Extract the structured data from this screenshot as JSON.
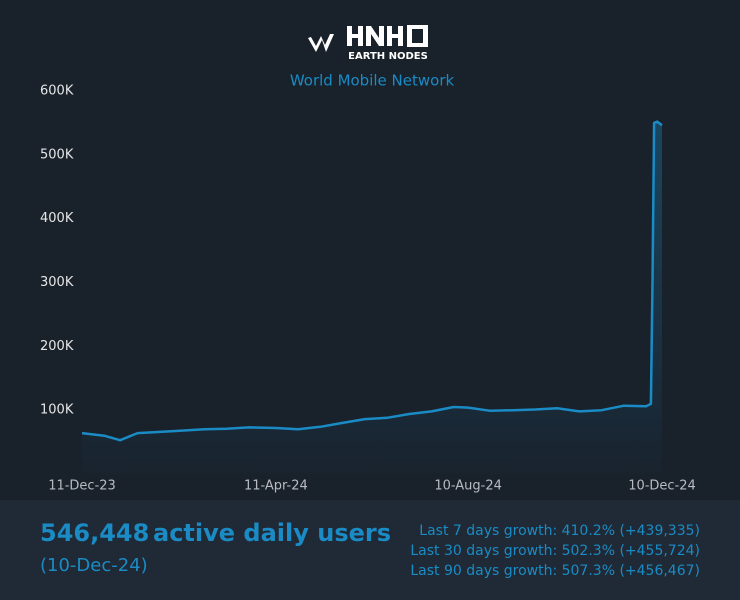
{
  "chart_data": {
    "type": "area",
    "brand": "EARTH NODES",
    "subtitle": "World Mobile Network",
    "x": [
      "11-Dec-23",
      "25-Dec-23",
      "04-Jan-24",
      "15-Jan-24",
      "29-Jan-24",
      "12-Feb-24",
      "26-Feb-24",
      "11-Mar-24",
      "25-Mar-24",
      "11-Apr-24",
      "25-Apr-24",
      "09-May-24",
      "23-May-24",
      "06-Jun-24",
      "20-Jun-24",
      "04-Jul-24",
      "18-Jul-24",
      "01-Aug-24",
      "10-Aug-24",
      "24-Aug-24",
      "07-Sep-24",
      "21-Sep-24",
      "05-Oct-24",
      "19-Oct-24",
      "02-Nov-24",
      "16-Nov-24",
      "30-Nov-24",
      "03-Dec-24",
      "04-Dec-24",
      "05-Dec-24",
      "07-Dec-24",
      "10-Dec-24"
    ],
    "values": [
      64000,
      60000,
      53000,
      64000,
      66000,
      68000,
      70000,
      71000,
      73000,
      72000,
      70000,
      74000,
      80000,
      86000,
      88000,
      94000,
      98000,
      105000,
      104000,
      99000,
      100000,
      101000,
      103000,
      98000,
      100000,
      107000,
      106000,
      110000,
      300000,
      550000,
      552000,
      546448
    ],
    "color": "#1a8bc4",
    "xlim": [
      "11-Dec-23",
      "10-Dec-24"
    ],
    "xticks": [
      "11-Dec-23",
      "11-Apr-24",
      "10-Aug-24",
      "10-Dec-24"
    ],
    "ylim": [
      0,
      600000
    ],
    "yticks": [
      {
        "value": 100000,
        "label": "100K"
      },
      {
        "value": 200000,
        "label": "200K"
      },
      {
        "value": 300000,
        "label": "300K"
      },
      {
        "value": 400000,
        "label": "400K"
      },
      {
        "value": 500000,
        "label": "500K"
      },
      {
        "value": 600000,
        "label": "600K"
      }
    ],
    "grid": false
  },
  "summary": {
    "value": "546,448",
    "label": "active daily users",
    "date": "(10-Dec-24)",
    "growth": [
      "Last 7 days growth: 410.2% (+439,335)",
      "Last 30 days growth: 502.3% (+455,724)",
      "Last 90 days growth: 507.3% (+456,467)"
    ]
  }
}
